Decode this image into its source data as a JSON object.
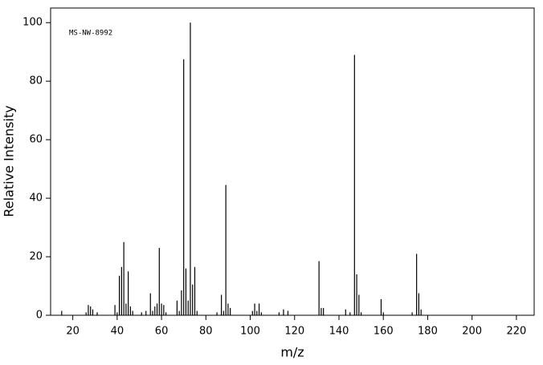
{
  "chart_data": {
    "type": "stem",
    "annotation": "MS-NW-8992",
    "xlabel": "m/z",
    "ylabel": "Relative Intensity",
    "color": "#000000",
    "x": [
      15,
      26,
      27,
      28,
      29,
      31,
      39,
      40,
      41,
      42,
      43,
      44,
      45,
      46,
      47,
      51,
      53,
      55,
      56,
      57,
      58,
      59,
      60,
      61,
      62,
      67,
      68,
      69,
      70,
      71,
      72,
      73,
      74,
      75,
      76,
      85,
      87,
      88,
      89,
      90,
      91,
      101,
      102,
      103,
      104,
      105,
      113,
      115,
      117,
      131,
      132,
      133,
      143,
      145,
      147,
      148,
      149,
      150,
      159,
      160,
      173,
      175,
      176,
      177
    ],
    "values": [
      1.5,
      1,
      3.5,
      3,
      2,
      1,
      3.5,
      1,
      13.5,
      16.5,
      25,
      4,
      15,
      3,
      1.5,
      1,
      1.5,
      7.5,
      1.5,
      3,
      4,
      23,
      4,
      3.5,
      1,
      5,
      1.5,
      8.5,
      87.5,
      16,
      5,
      100,
      10.5,
      16.5,
      1.5,
      1,
      7,
      1.5,
      44.5,
      4,
      2.5,
      1.5,
      4,
      1.5,
      4,
      1,
      1,
      2,
      1.5,
      18.5,
      2.5,
      2.5,
      2,
      1,
      89,
      14,
      7,
      1,
      5.5,
      1,
      1,
      21,
      7.5,
      2
    ],
    "xlim": [
      10,
      228
    ],
    "ylim": [
      0,
      105
    ],
    "xticks": [
      20,
      40,
      60,
      80,
      100,
      120,
      140,
      160,
      180,
      200,
      220
    ],
    "yticks": [
      0,
      20,
      40,
      60,
      80,
      100
    ]
  }
}
